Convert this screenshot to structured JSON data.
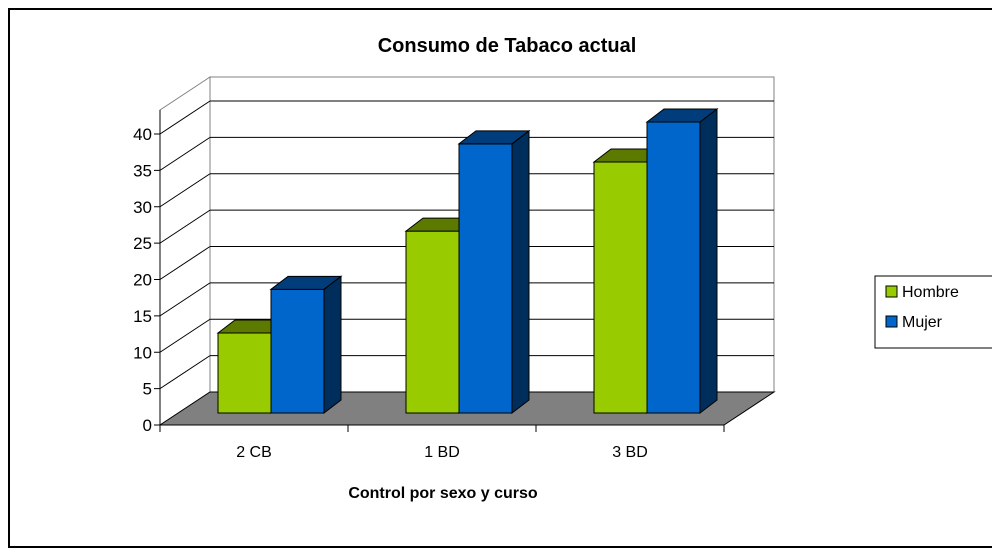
{
  "chart_data": {
    "type": "bar",
    "title": "Consumo de Tabaco actual",
    "xlabel": "Control por sexo y curso",
    "ylabel": "",
    "categories": [
      "2 CB",
      "1 BD",
      "3 BD"
    ],
    "series": [
      {
        "name": "Hombre",
        "values": [
          11,
          25,
          34.5
        ],
        "color": "#99CC00"
      },
      {
        "name": "Mujer",
        "values": [
          17,
          37,
          40
        ],
        "color": "#0066CC"
      }
    ],
    "ylim": [
      0,
      40
    ],
    "yticks": [
      "0",
      "5",
      "10",
      "15",
      "20",
      "25",
      "30",
      "35",
      "40"
    ],
    "grid": true,
    "legend": "right",
    "style": "3d-clustered-column"
  }
}
